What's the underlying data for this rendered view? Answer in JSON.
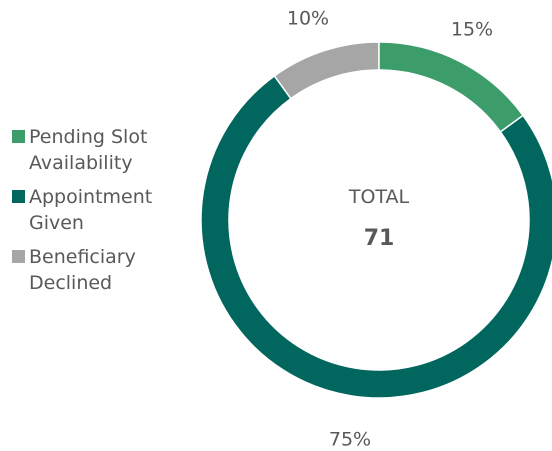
{
  "chart_data": {
    "type": "donut",
    "categories": [
      "Pending Slot Availability",
      "Appointment Given",
      "Beneficiary Declined"
    ],
    "values": [
      15,
      75,
      10
    ],
    "value_labels": [
      "15%",
      "75%",
      "10%"
    ],
    "colors": [
      "#3c9d6b",
      "#00665e",
      "#a6a6a6"
    ],
    "center_label": "TOTAL",
    "total": 71,
    "legend": "left"
  }
}
